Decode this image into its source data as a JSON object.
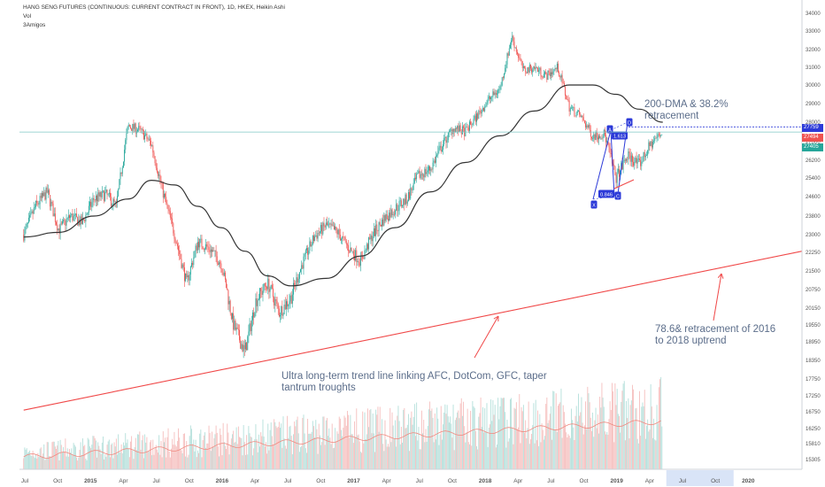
{
  "header": {
    "title": "HANG SENG FUTURES (CONTINUOUS: CURRENT CONTRACT IN FRONT), 1D, HKEX, Heikin Ashi",
    "indicator_vol": "Vol",
    "indicator_3amigos": "3Amigos"
  },
  "colors": {
    "bull": "#26a69a",
    "bear": "#ef5350",
    "ma": "#333333",
    "trend": "#f04848",
    "price_line": "#7fc7c4",
    "pattern": "#2c3ad8",
    "annotation": "#5b6d8a",
    "axis_text": "#555555"
  },
  "annotations": {
    "dma": [
      "200-DMA & 38.2%",
      "retracement"
    ],
    "retracement": [
      "78.6& retracement of 2016",
      "to 2018 uptrend"
    ],
    "trendline": [
      "Ultra long-term trend line linking AFC, DotCom, GFC, taper",
      "tantrum troughts"
    ]
  },
  "price_labels": [
    {
      "value": "27759",
      "color": "#2c3ad8"
    },
    {
      "value": "27494",
      "color": "#ef5350"
    },
    {
      "value": "27405",
      "color": "#26a69a"
    }
  ],
  "pattern_labels": {
    "X": "X",
    "A": "A",
    "B": "B",
    "C": "C",
    "D": "D",
    "xa_ratio": "0.846",
    "bd_ratio": "1.613"
  },
  "chart_data": {
    "type": "line",
    "x_ticks": [
      "Jul",
      "Oct",
      "2015",
      "Apr",
      "Jul",
      "Oct",
      "2016",
      "Apr",
      "Jul",
      "Oct",
      "2017",
      "Apr",
      "Jul",
      "Oct",
      "2018",
      "Apr",
      "Jul",
      "Oct",
      "2019",
      "Apr",
      "Jul",
      "Oct",
      "2020"
    ],
    "y_ticks": [
      15305,
      15810,
      16250,
      16750,
      17250,
      17750,
      18350,
      18950,
      19550,
      20150,
      20750,
      21500,
      22250,
      23000,
      23800,
      24600,
      25400,
      26200,
      27000,
      28000,
      29000,
      30000,
      31000,
      32000,
      33000,
      34000
    ],
    "price_series": {
      "name": "Hang Seng Futures (Heikin Ashi)",
      "points": [
        [
          "2014-07",
          23000
        ],
        [
          "2014-08",
          24200
        ],
        [
          "2014-09",
          24800
        ],
        [
          "2014-10",
          23200
        ],
        [
          "2014-11",
          23800
        ],
        [
          "2014-12",
          23500
        ],
        [
          "2015-01",
          24500
        ],
        [
          "2015-02",
          24700
        ],
        [
          "2015-03",
          24200
        ],
        [
          "2015-04",
          27800
        ],
        [
          "2015-05",
          27600
        ],
        [
          "2015-06",
          26900
        ],
        [
          "2015-07",
          24800
        ],
        [
          "2015-08",
          23000
        ],
        [
          "2015-09",
          21000
        ],
        [
          "2015-10",
          22700
        ],
        [
          "2015-11",
          22400
        ],
        [
          "2015-12",
          21800
        ],
        [
          "2016-01",
          19600
        ],
        [
          "2016-02",
          18600
        ],
        [
          "2016-03",
          20400
        ],
        [
          "2016-04",
          21000
        ],
        [
          "2016-05",
          20000
        ],
        [
          "2016-06",
          20500
        ],
        [
          "2016-07",
          21800
        ],
        [
          "2016-08",
          22900
        ],
        [
          "2016-09",
          23400
        ],
        [
          "2016-10",
          23100
        ],
        [
          "2016-11",
          22400
        ],
        [
          "2016-12",
          21900
        ],
        [
          "2017-01",
          23000
        ],
        [
          "2017-02",
          23700
        ],
        [
          "2017-03",
          24100
        ],
        [
          "2017-04",
          24500
        ],
        [
          "2017-05",
          25500
        ],
        [
          "2017-06",
          25800
        ],
        [
          "2017-07",
          26800
        ],
        [
          "2017-08",
          27700
        ],
        [
          "2017-09",
          27500
        ],
        [
          "2017-10",
          28300
        ],
        [
          "2017-11",
          29200
        ],
        [
          "2017-12",
          29800
        ],
        [
          "2018-01",
          32700
        ],
        [
          "2018-02",
          30800
        ],
        [
          "2018-03",
          31000
        ],
        [
          "2018-04",
          30500
        ],
        [
          "2018-05",
          31000
        ],
        [
          "2018-06",
          28800
        ],
        [
          "2018-07",
          28300
        ],
        [
          "2018-08",
          27300
        ],
        [
          "2018-09",
          27400
        ],
        [
          "2018-10",
          25400
        ],
        [
          "2018-11",
          26400
        ],
        [
          "2018-12",
          26000
        ],
        [
          "2019-01",
          26900
        ],
        [
          "2019-02",
          27500
        ]
      ]
    },
    "ma_series": {
      "name": "200-DMA",
      "points": [
        [
          "2014-07",
          22900
        ],
        [
          "2014-10",
          23100
        ],
        [
          "2015-01",
          23800
        ],
        [
          "2015-04",
          24500
        ],
        [
          "2015-06",
          25300
        ],
        [
          "2015-08",
          25100
        ],
        [
          "2015-10",
          24200
        ],
        [
          "2015-12",
          23300
        ],
        [
          "2016-02",
          22300
        ],
        [
          "2016-04",
          21300
        ],
        [
          "2016-06",
          20900
        ],
        [
          "2016-09",
          21200
        ],
        [
          "2016-12",
          22100
        ],
        [
          "2017-03",
          23300
        ],
        [
          "2017-06",
          24800
        ],
        [
          "2017-09",
          26100
        ],
        [
          "2017-12",
          27300
        ],
        [
          "2018-03",
          28600
        ],
        [
          "2018-06",
          30000
        ],
        [
          "2018-08",
          30000
        ],
        [
          "2018-10",
          29500
        ],
        [
          "2018-12",
          28700
        ],
        [
          "2019-02",
          28000
        ]
      ]
    },
    "trend_line": {
      "start": [
        "2014-07",
        16800
      ],
      "end": [
        "2020-01",
        22300
      ]
    },
    "current_price": 27494
  }
}
